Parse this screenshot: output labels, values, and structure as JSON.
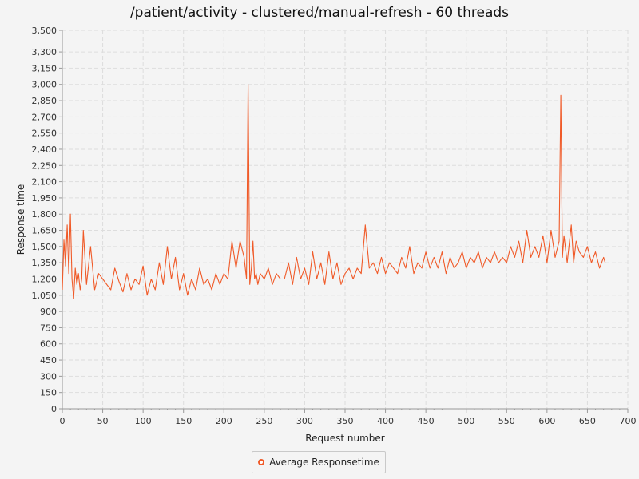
{
  "colors": {
    "series": "#f05a28",
    "grid": "#dddddd",
    "axis": "#999999",
    "background": "#f4f4f4"
  },
  "legend": {
    "label": "Average Responsetime"
  },
  "chart_data": {
    "type": "line",
    "title": "/patient/activity - clustered/manual-refresh - 60 threads",
    "xlabel": "Request number",
    "ylabel": "Response time",
    "xlim": [
      0,
      700
    ],
    "ylim": [
      0,
      3500
    ],
    "x_ticks": [
      0,
      50,
      100,
      150,
      200,
      250,
      300,
      350,
      400,
      450,
      500,
      550,
      600,
      650,
      700
    ],
    "y_ticks": [
      0,
      150,
      300,
      450,
      600,
      750,
      900,
      1050,
      1200,
      1350,
      1500,
      1650,
      1800,
      1950,
      2100,
      2250,
      2400,
      2550,
      2700,
      2850,
      3000,
      3150,
      3300,
      3500
    ],
    "grid": true,
    "legend_position": "bottom-center",
    "series": [
      {
        "name": "Average Responsetime",
        "x": [
          0,
          2,
          4,
          6,
          8,
          10,
          12,
          14,
          16,
          18,
          20,
          22,
          24,
          26,
          30,
          35,
          40,
          45,
          50,
          55,
          60,
          65,
          70,
          75,
          80,
          85,
          90,
          95,
          100,
          105,
          110,
          115,
          120,
          125,
          130,
          135,
          140,
          145,
          150,
          155,
          160,
          165,
          170,
          175,
          180,
          185,
          190,
          195,
          200,
          205,
          210,
          215,
          220,
          225,
          228,
          230,
          232,
          234,
          236,
          238,
          240,
          242,
          245,
          250,
          255,
          260,
          265,
          270,
          275,
          280,
          285,
          290,
          295,
          300,
          305,
          310,
          315,
          320,
          325,
          330,
          335,
          340,
          345,
          350,
          355,
          360,
          365,
          370,
          375,
          380,
          385,
          390,
          395,
          400,
          405,
          410,
          415,
          420,
          425,
          430,
          435,
          440,
          445,
          450,
          455,
          460,
          465,
          470,
          475,
          480,
          485,
          490,
          495,
          500,
          505,
          510,
          515,
          520,
          525,
          530,
          535,
          540,
          545,
          550,
          555,
          560,
          565,
          570,
          575,
          580,
          585,
          590,
          595,
          600,
          605,
          610,
          615,
          617,
          619,
          621,
          625,
          630,
          633,
          636,
          640,
          645,
          650,
          655,
          660,
          665,
          670,
          672
        ],
        "values": [
          1100,
          1560,
          1320,
          1700,
          1250,
          1800,
          1200,
          1020,
          1300,
          1150,
          1250,
          1100,
          1200,
          1650,
          1150,
          1500,
          1100,
          1250,
          1200,
          1150,
          1100,
          1300,
          1180,
          1080,
          1250,
          1100,
          1200,
          1150,
          1320,
          1050,
          1200,
          1100,
          1350,
          1150,
          1500,
          1200,
          1400,
          1100,
          1250,
          1050,
          1200,
          1100,
          1300,
          1150,
          1200,
          1100,
          1250,
          1150,
          1250,
          1200,
          1550,
          1300,
          1550,
          1400,
          1200,
          3000,
          1150,
          1300,
          1550,
          1200,
          1250,
          1150,
          1250,
          1200,
          1300,
          1150,
          1250,
          1200,
          1200,
          1350,
          1150,
          1400,
          1200,
          1300,
          1150,
          1450,
          1200,
          1350,
          1150,
          1450,
          1200,
          1350,
          1150,
          1250,
          1300,
          1200,
          1300,
          1250,
          1700,
          1300,
          1350,
          1250,
          1400,
          1250,
          1350,
          1300,
          1250,
          1400,
          1300,
          1500,
          1250,
          1350,
          1300,
          1450,
          1300,
          1400,
          1300,
          1450,
          1250,
          1400,
          1300,
          1350,
          1450,
          1300,
          1400,
          1350,
          1450,
          1300,
          1400,
          1350,
          1450,
          1350,
          1400,
          1350,
          1500,
          1400,
          1550,
          1350,
          1650,
          1400,
          1500,
          1400,
          1600,
          1350,
          1650,
          1400,
          1550,
          2900,
          1400,
          1600,
          1350,
          1700,
          1350,
          1550,
          1450,
          1400,
          1500,
          1350,
          1450,
          1300,
          1400,
          1350
        ]
      }
    ]
  }
}
